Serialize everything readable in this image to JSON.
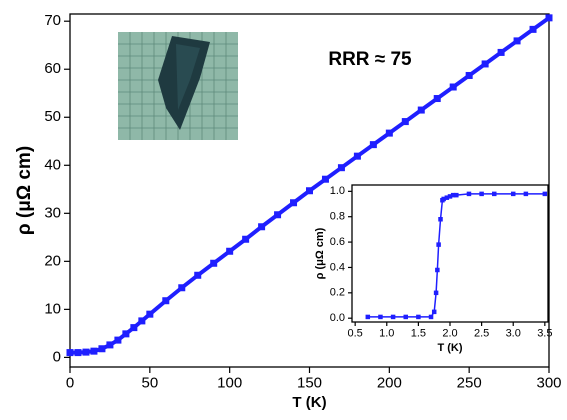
{
  "chart_data": [
    {
      "type": "line",
      "x_label": "T (K)",
      "y_label": "ρ (μΩ cm)",
      "annotation": "RRR ≈ 75",
      "x": [
        0,
        5,
        10,
        15,
        20,
        25,
        30,
        35,
        40,
        45,
        50,
        60,
        70,
        80,
        90,
        100,
        110,
        120,
        130,
        140,
        150,
        160,
        170,
        180,
        190,
        200,
        210,
        220,
        230,
        240,
        250,
        260,
        270,
        280,
        290,
        300
      ],
      "series": [
        {
          "color": "#1f1fff",
          "values": [
            1.0,
            1.0,
            1.1,
            1.3,
            1.8,
            2.6,
            3.6,
            4.9,
            6.2,
            7.6,
            9.0,
            11.8,
            14.5,
            17.1,
            19.6,
            22.1,
            24.6,
            27.2,
            29.7,
            32.2,
            34.7,
            37.1,
            39.5,
            41.9,
            44.3,
            46.7,
            49.1,
            51.5,
            53.9,
            56.3,
            58.7,
            61.1,
            63.5,
            65.9,
            68.3,
            70.7
          ]
        }
      ],
      "xlim": [
        0,
        300
      ],
      "xticks": [
        0,
        50,
        100,
        150,
        200,
        250,
        300
      ],
      "ylim": [
        -2,
        71.5
      ],
      "yticks": [
        0,
        10,
        20,
        30,
        40,
        50,
        60,
        70
      ]
    },
    {
      "type": "line",
      "x_label": "T (K)",
      "y_label": "ρ (μΩ cm)",
      "x": [
        0.7,
        0.9,
        1.1,
        1.3,
        1.5,
        1.7,
        1.75,
        1.78,
        1.8,
        1.82,
        1.85,
        1.88,
        1.9,
        1.95,
        2.0,
        2.05,
        2.1,
        2.3,
        2.5,
        2.7,
        3.0,
        3.2,
        3.5
      ],
      "series": [
        {
          "color": "#1f1fff",
          "values": [
            0.01,
            0.01,
            0.01,
            0.01,
            0.01,
            0.01,
            0.05,
            0.2,
            0.38,
            0.58,
            0.78,
            0.93,
            0.94,
            0.95,
            0.96,
            0.97,
            0.97,
            0.98,
            0.98,
            0.98,
            0.98,
            0.98,
            0.98
          ]
        }
      ],
      "xlim": [
        0.45,
        3.55
      ],
      "xticks": [
        {
          "value": 0.5,
          "label": "0.5"
        },
        {
          "value": 1.0,
          "label": "1.0"
        },
        {
          "value": 1.5,
          "label": "1.5"
        },
        {
          "value": 2.0,
          "label": "2.0"
        },
        {
          "value": 2.5,
          "label": "2.5"
        },
        {
          "value": 3.0,
          "label": "3.0"
        },
        {
          "value": 3.5,
          "label": "3.5"
        }
      ],
      "ylim": [
        -0.03,
        1.05
      ],
      "yticks": [
        {
          "value": 0,
          "label": "0.0"
        },
        {
          "value": 0.2,
          "label": "0.2"
        },
        {
          "value": 0.4,
          "label": "0.4"
        },
        {
          "value": 0.6,
          "label": "0.6"
        },
        {
          "value": 0.8,
          "label": "0.8"
        },
        {
          "value": 1.0,
          "label": "1.0"
        }
      ]
    }
  ]
}
